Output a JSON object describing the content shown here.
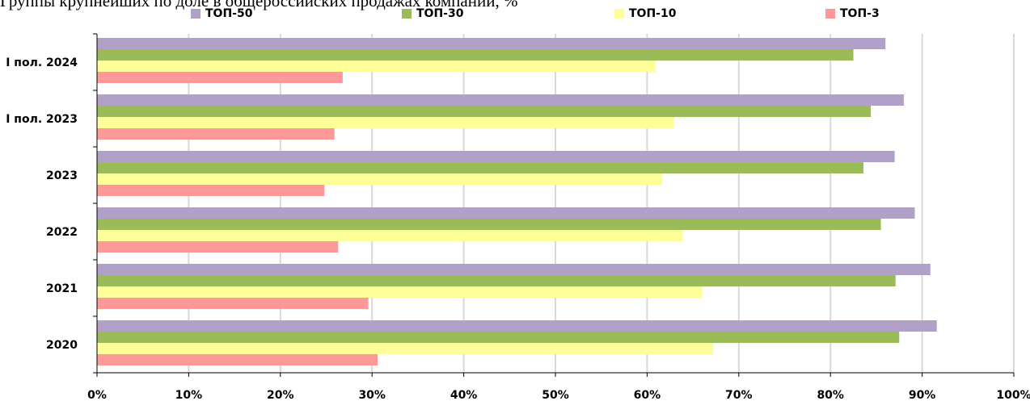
{
  "caption_fragment": "Группы крупнейших по доле в общероссийских продажах компаний, %",
  "chart_data": {
    "type": "bar",
    "orientation": "horizontal",
    "categories": [
      "I пол. 2024",
      "I пол. 2023",
      "2023",
      "2022",
      "2021",
      "2020"
    ],
    "series": [
      {
        "name": "ТОП-50",
        "color": "#b1a0c7",
        "values": [
          86,
          88,
          87,
          89.2,
          90.9,
          91.6
        ]
      },
      {
        "name": "ТОП-30",
        "color": "#9bbb59",
        "values": [
          82.5,
          84.4,
          83.6,
          85.5,
          87.1,
          87.5
        ]
      },
      {
        "name": "ТОП-10",
        "color": "#ffff99",
        "values": [
          60.9,
          62.9,
          61.6,
          63.9,
          66,
          67.2
        ]
      },
      {
        "name": "ТОП-3",
        "color": "#ff9999",
        "values": [
          26.8,
          25.9,
          24.8,
          26.3,
          29.6,
          30.6
        ]
      }
    ],
    "xlim": [
      0,
      100
    ],
    "x_ticks": [
      "0%",
      "10%",
      "20%",
      "30%",
      "40%",
      "50%",
      "60%",
      "70%",
      "80%",
      "90%",
      "100%"
    ],
    "grid": "vertical",
    "legend": "top"
  }
}
